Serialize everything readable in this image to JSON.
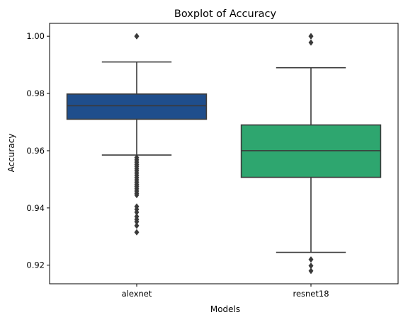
{
  "chart_data": {
    "type": "boxplot",
    "title": "Boxplot of Accuracy",
    "xlabel": "Models",
    "ylabel": "Accuracy",
    "ylim": [
      0.9135,
      1.0045
    ],
    "yticks": [
      0.92,
      0.94,
      0.96,
      0.98,
      1.0
    ],
    "ytick_labels": [
      "0.92",
      "0.94",
      "0.96",
      "0.98",
      "1.00"
    ],
    "categories": [
      "alexnet",
      "resnet18"
    ],
    "grid": false,
    "legend": "none",
    "series": [
      {
        "category": "alexnet",
        "color": "#1f4e8c",
        "whisker_low": 0.9585,
        "q1": 0.971,
        "median": 0.9757,
        "q3": 0.9798,
        "whisker_high": 0.991,
        "outliers": [
          1.0,
          1.0,
          0.9576,
          0.9568,
          0.956,
          0.9552,
          0.9545,
          0.9537,
          0.953,
          0.9522,
          0.9514,
          0.9506,
          0.9498,
          0.949,
          0.9482,
          0.9475,
          0.9467,
          0.9459,
          0.9451,
          0.9445,
          0.9405,
          0.9395,
          0.9385,
          0.937,
          0.936,
          0.9352,
          0.9338,
          0.9315
        ]
      },
      {
        "category": "resnet18",
        "color": "#2ea66f",
        "whisker_low": 0.9245,
        "q1": 0.9507,
        "median": 0.96,
        "q3": 0.969,
        "whisker_high": 0.989,
        "outliers": [
          1.0,
          1.0,
          0.9978,
          0.922,
          0.9198,
          0.918
        ]
      }
    ]
  }
}
